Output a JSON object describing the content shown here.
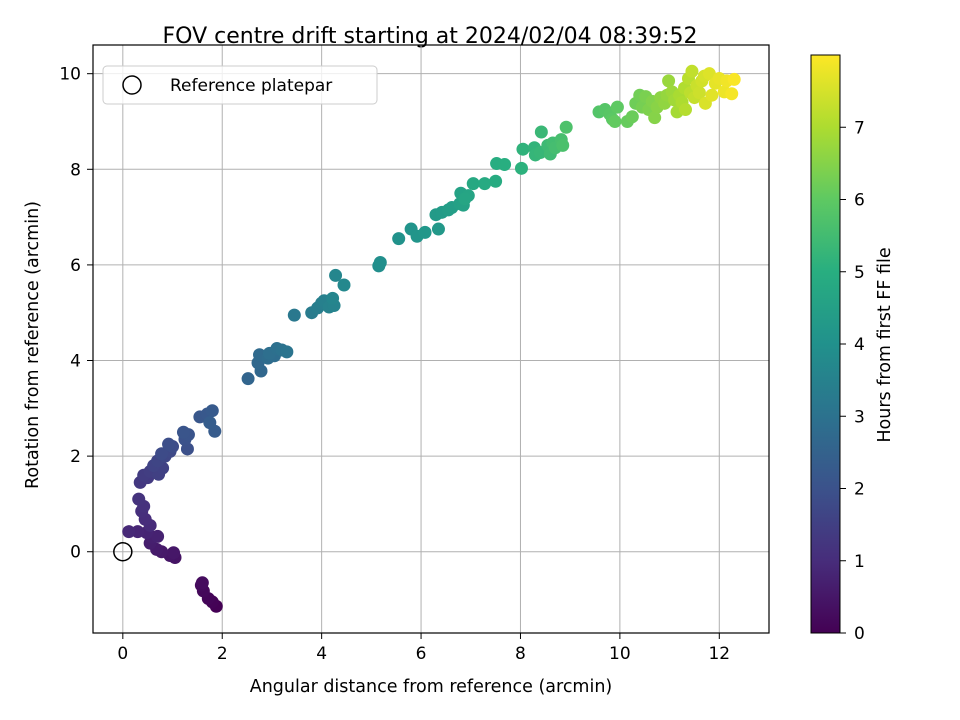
{
  "chart_data": {
    "type": "scatter",
    "title": "FOV centre drift starting at 2024/02/04 08:39:52",
    "xlabel": "Angular distance from reference (arcmin)",
    "ylabel": "Rotation from reference (arcmin)",
    "xlim": [
      -0.6,
      13.0
    ],
    "ylim": [
      -1.7,
      10.6
    ],
    "xticks": [
      "0",
      "2",
      "4",
      "6",
      "8",
      "10",
      "12"
    ],
    "yticks": [
      "0",
      "2",
      "4",
      "6",
      "8",
      "10"
    ],
    "grid": true,
    "legend": {
      "placement": "top-left",
      "entries": [
        "Reference platepar"
      ]
    },
    "reference_point": {
      "x": 0,
      "y": 0
    },
    "colorbar": {
      "label": "Hours from first FF file",
      "range": [
        0,
        8
      ],
      "ticks": [
        "0",
        "1",
        "2",
        "3",
        "4",
        "5",
        "6",
        "7"
      ],
      "colormap": "viridis"
    },
    "points": [
      [
        1.88,
        -1.14,
        0.0
      ],
      [
        1.8,
        -1.05,
        0.05
      ],
      [
        1.72,
        -0.98,
        0.1
      ],
      [
        1.62,
        -0.82,
        0.15
      ],
      [
        1.58,
        -0.7,
        0.2
      ],
      [
        1.6,
        -0.65,
        0.25
      ],
      [
        1.05,
        -0.12,
        0.4
      ],
      [
        0.95,
        -0.08,
        0.45
      ],
      [
        1.02,
        -0.02,
        0.5
      ],
      [
        0.78,
        0.0,
        0.55
      ],
      [
        0.68,
        0.05,
        0.6
      ],
      [
        0.55,
        0.18,
        0.65
      ],
      [
        0.6,
        0.3,
        0.7
      ],
      [
        0.7,
        0.32,
        0.75
      ],
      [
        0.48,
        0.4,
        0.8
      ],
      [
        0.3,
        0.42,
        0.85
      ],
      [
        0.12,
        0.42,
        0.9
      ],
      [
        0.55,
        0.55,
        0.95
      ],
      [
        0.45,
        0.68,
        1.0
      ],
      [
        0.38,
        0.85,
        1.05
      ],
      [
        0.42,
        0.95,
        1.1
      ],
      [
        0.32,
        1.1,
        1.15
      ],
      [
        0.35,
        1.45,
        1.3
      ],
      [
        0.5,
        1.55,
        1.35
      ],
      [
        0.42,
        1.6,
        1.4
      ],
      [
        0.55,
        1.68,
        1.45
      ],
      [
        0.72,
        1.62,
        1.5
      ],
      [
        0.8,
        1.75,
        1.55
      ],
      [
        0.62,
        1.8,
        1.6
      ],
      [
        0.7,
        1.9,
        1.65
      ],
      [
        0.85,
        2.0,
        1.7
      ],
      [
        0.95,
        2.1,
        1.75
      ],
      [
        0.78,
        2.05,
        1.8
      ],
      [
        1.0,
        2.2,
        1.85
      ],
      [
        0.92,
        2.25,
        1.9
      ],
      [
        1.3,
        2.15,
        1.95
      ],
      [
        1.25,
        2.35,
        2.0
      ],
      [
        1.32,
        2.45,
        2.05
      ],
      [
        1.22,
        2.5,
        2.1
      ],
      [
        1.55,
        2.82,
        2.15
      ],
      [
        1.7,
        2.88,
        2.2
      ],
      [
        1.8,
        2.95,
        2.25
      ],
      [
        1.85,
        2.52,
        2.3
      ],
      [
        1.75,
        2.7,
        2.35
      ],
      [
        2.52,
        3.62,
        2.6
      ],
      [
        2.78,
        3.78,
        2.65
      ],
      [
        2.72,
        3.95,
        2.7
      ],
      [
        2.75,
        4.12,
        2.75
      ],
      [
        2.92,
        4.05,
        2.8
      ],
      [
        3.05,
        4.1,
        2.85
      ],
      [
        2.95,
        4.15,
        2.9
      ],
      [
        3.1,
        4.25,
        2.95
      ],
      [
        3.2,
        4.22,
        3.0
      ],
      [
        3.3,
        4.18,
        3.05
      ],
      [
        3.45,
        4.95,
        3.2
      ],
      [
        3.8,
        5.0,
        3.3
      ],
      [
        3.92,
        5.1,
        3.35
      ],
      [
        4.0,
        5.2,
        3.4
      ],
      [
        4.05,
        5.25,
        3.45
      ],
      [
        4.15,
        5.12,
        3.5
      ],
      [
        4.25,
        5.15,
        3.55
      ],
      [
        4.22,
        5.3,
        3.6
      ],
      [
        4.28,
        5.78,
        3.65
      ],
      [
        4.45,
        5.58,
        3.7
      ],
      [
        5.15,
        5.98,
        3.9
      ],
      [
        5.18,
        6.05,
        3.95
      ],
      [
        5.55,
        6.55,
        4.05
      ],
      [
        5.8,
        6.75,
        4.1
      ],
      [
        5.92,
        6.6,
        4.15
      ],
      [
        6.08,
        6.68,
        4.2
      ],
      [
        6.35,
        6.75,
        4.25
      ],
      [
        6.3,
        7.05,
        4.3
      ],
      [
        6.42,
        7.1,
        4.35
      ],
      [
        6.55,
        7.15,
        4.4
      ],
      [
        6.62,
        7.2,
        4.45
      ],
      [
        6.78,
        7.28,
        4.5
      ],
      [
        6.85,
        7.25,
        4.55
      ],
      [
        6.8,
        7.5,
        4.6
      ],
      [
        6.95,
        7.45,
        4.65
      ],
      [
        6.88,
        7.38,
        4.7
      ],
      [
        7.05,
        7.7,
        4.8
      ],
      [
        7.28,
        7.7,
        4.85
      ],
      [
        7.5,
        7.75,
        4.9
      ],
      [
        7.52,
        8.12,
        4.95
      ],
      [
        7.68,
        8.1,
        5.0
      ],
      [
        8.02,
        8.02,
        5.1
      ],
      [
        8.05,
        8.42,
        5.15
      ],
      [
        8.28,
        8.45,
        5.2
      ],
      [
        8.3,
        8.3,
        5.25
      ],
      [
        8.4,
        8.35,
        5.3
      ],
      [
        8.42,
        8.78,
        5.35
      ],
      [
        8.55,
        8.5,
        5.4
      ],
      [
        8.6,
        8.32,
        5.45
      ],
      [
        8.65,
        8.55,
        5.5
      ],
      [
        8.7,
        8.45,
        5.55
      ],
      [
        8.82,
        8.62,
        5.6
      ],
      [
        8.85,
        8.5,
        5.65
      ],
      [
        8.92,
        8.88,
        5.7
      ],
      [
        9.58,
        9.2,
        5.8
      ],
      [
        9.7,
        9.25,
        5.85
      ],
      [
        9.8,
        9.15,
        5.9
      ],
      [
        9.85,
        9.05,
        5.95
      ],
      [
        9.95,
        9.3,
        6.0
      ],
      [
        9.9,
        9.0,
        6.05
      ],
      [
        10.15,
        9.0,
        6.1
      ],
      [
        10.25,
        9.1,
        6.15
      ],
      [
        10.32,
        9.38,
        6.2
      ],
      [
        10.4,
        9.55,
        6.25
      ],
      [
        10.45,
        9.3,
        6.3
      ],
      [
        10.52,
        9.52,
        6.35
      ],
      [
        10.58,
        9.25,
        6.4
      ],
      [
        10.65,
        9.42,
        6.45
      ],
      [
        10.7,
        9.08,
        6.5
      ],
      [
        10.75,
        9.3,
        6.55
      ],
      [
        10.82,
        9.5,
        6.6
      ],
      [
        10.9,
        9.38,
        6.65
      ],
      [
        10.95,
        9.55,
        6.7
      ],
      [
        10.98,
        9.85,
        6.75
      ],
      [
        11.05,
        9.62,
        6.8
      ],
      [
        11.1,
        9.45,
        6.85
      ],
      [
        11.15,
        9.2,
        6.9
      ],
      [
        11.2,
        9.55,
        6.95
      ],
      [
        11.25,
        9.4,
        7.0
      ],
      [
        11.3,
        9.7,
        7.05
      ],
      [
        11.32,
        9.25,
        7.1
      ],
      [
        11.38,
        9.9,
        7.15
      ],
      [
        11.42,
        9.6,
        7.2
      ],
      [
        11.45,
        10.05,
        7.25
      ],
      [
        11.5,
        9.5,
        7.3
      ],
      [
        11.55,
        9.75,
        7.35
      ],
      [
        11.6,
        9.6,
        7.4
      ],
      [
        11.65,
        9.85,
        7.45
      ],
      [
        11.7,
        9.95,
        7.5
      ],
      [
        11.72,
        9.38,
        7.55
      ],
      [
        11.8,
        10.0,
        7.6
      ],
      [
        11.85,
        9.55,
        7.65
      ],
      [
        11.92,
        9.8,
        7.7
      ],
      [
        12.0,
        9.9,
        7.75
      ],
      [
        12.1,
        9.62,
        7.8
      ],
      [
        12.15,
        9.85,
        7.85
      ],
      [
        12.25,
        9.58,
        7.9
      ],
      [
        12.3,
        9.88,
        7.95
      ]
    ]
  }
}
